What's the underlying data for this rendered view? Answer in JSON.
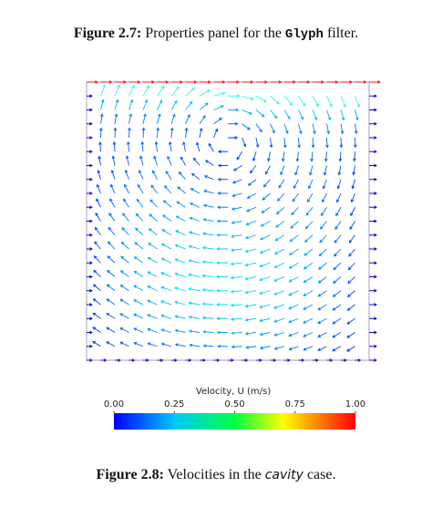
{
  "figure_top": {
    "label": "Figure 2.7:",
    "text_before": "Properties panel for the",
    "code": "Glyph",
    "text_after": "filter."
  },
  "plot": {
    "colorbar": {
      "title": "Velocity, U (m/s)",
      "lim": [
        0,
        1
      ],
      "ticks": [
        {
          "value": 0,
          "label": "0.00"
        },
        {
          "value": 0.25,
          "label": "0.25"
        },
        {
          "value": 0.5,
          "label": "0.50"
        },
        {
          "value": 0.75,
          "label": "0.75"
        },
        {
          "value": 1,
          "label": "1.00"
        }
      ]
    }
  },
  "figure_bottom": {
    "label": "Figure 2.8:",
    "text_before": "Velocities in the",
    "emph": "cavity",
    "text_after": "case."
  }
}
